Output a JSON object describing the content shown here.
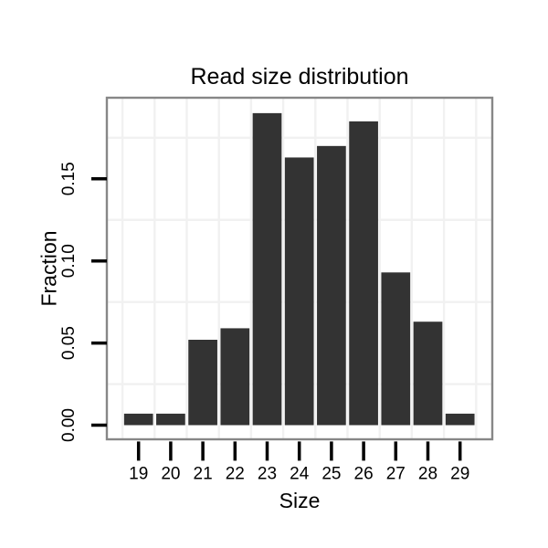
{
  "title": "Read size distribution",
  "x_axis": {
    "label": "Size",
    "tick_labels": [
      "19",
      "20",
      "21",
      "22",
      "23",
      "24",
      "25",
      "26",
      "27",
      "28",
      "29"
    ]
  },
  "y_axis": {
    "label": "Fraction",
    "tick_labels": [
      "0.00",
      "0.05",
      "0.10",
      "0.15"
    ]
  },
  "chart_data": {
    "type": "bar",
    "title": "Read size distribution",
    "xlabel": "Size",
    "ylabel": "Fraction",
    "categories": [
      19,
      20,
      21,
      22,
      23,
      24,
      25,
      26,
      27,
      28,
      29
    ],
    "values": [
      0.007,
      0.007,
      0.052,
      0.059,
      0.19,
      0.163,
      0.17,
      0.185,
      0.093,
      0.063,
      0.007
    ],
    "yticks": [
      0.0,
      0.05,
      0.1,
      0.15
    ],
    "ytick_labels": [
      "0.00",
      "0.05",
      "0.10",
      "0.15"
    ],
    "ylim": [
      -0.009,
      0.199
    ],
    "minor_gridlines_y": [
      0.025,
      0.075,
      0.125,
      0.175
    ],
    "grid": "minor gridlines only, vertical lines at category midpoints",
    "legend": "none",
    "bar_color": "#333333",
    "panel_background": "#ffffff",
    "panel_border_color": "#878787",
    "gridline_color": "#f1f1f1",
    "tick_color": "#000000",
    "text_color": "#000000"
  }
}
